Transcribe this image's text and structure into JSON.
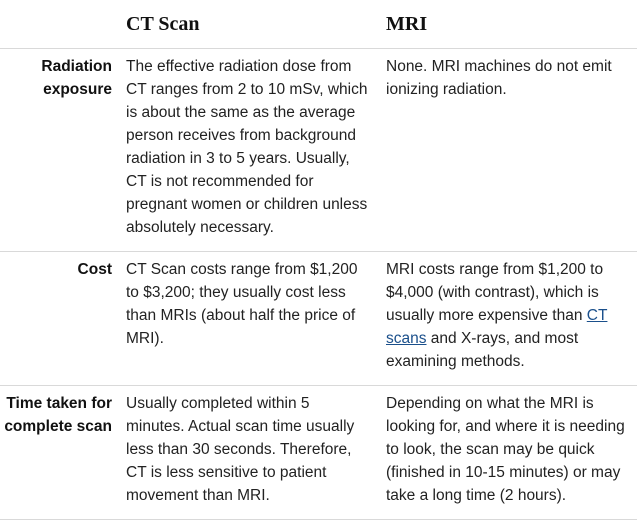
{
  "headers": {
    "label": "",
    "ct": "CT Scan",
    "mri": "MRI"
  },
  "rows": [
    {
      "label": "Radiation exposure",
      "ct": "The effective radiation dose from CT ranges from 2 to 10 mSv, which is about the same as the average person receives from background radiation in 3 to 5 years. Usually, CT is not recommended for pregnant women or children unless absolutely necessary.",
      "mri": "None. MRI machines do not emit ionizing radiation."
    },
    {
      "label": "Cost",
      "ct": "CT Scan costs range from $1,200 to $3,200; they usually cost less than MRIs (about half the price of MRI).",
      "mri_before": "MRI costs range from $1,200 to $4,000 (with contrast), which is usually more expensive than ",
      "mri_link": "CT scans",
      "mri_after": " and X-rays, and most examining methods."
    },
    {
      "label": "Time taken for complete scan",
      "ct": "Usually completed within 5 minutes. Actual scan time usually less than 30 seconds. Therefore, CT is less sensitive to patient movement than MRI.",
      "mri": "Depending on what the MRI is looking for, and where it is needing to look, the scan may be quick (finished in 10-15 minutes) or may take a long time (2 hours)."
    }
  ]
}
